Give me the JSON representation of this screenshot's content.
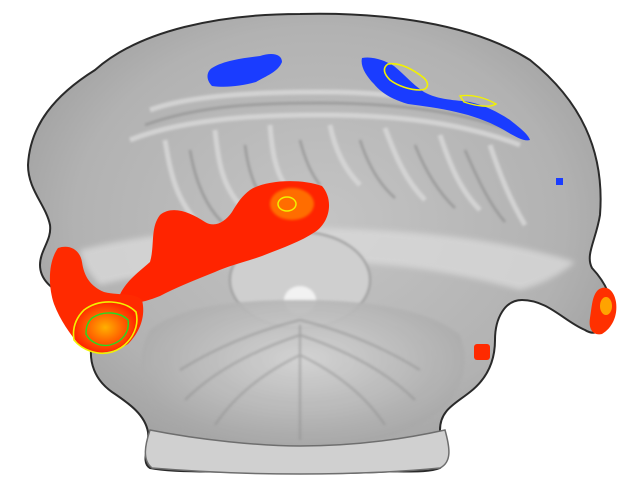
{
  "figure": {
    "background_color": "#ffffff",
    "tissue_color": "#b4b4b4",
    "outline_color": "#2a2a2a",
    "activation_positive_color": "#ff2a00",
    "activation_positive_core_color": "#ffb000",
    "activation_negative_color": "#1a3cff",
    "contour_colors": [
      "#f2f200",
      "#22dd22"
    ]
  }
}
